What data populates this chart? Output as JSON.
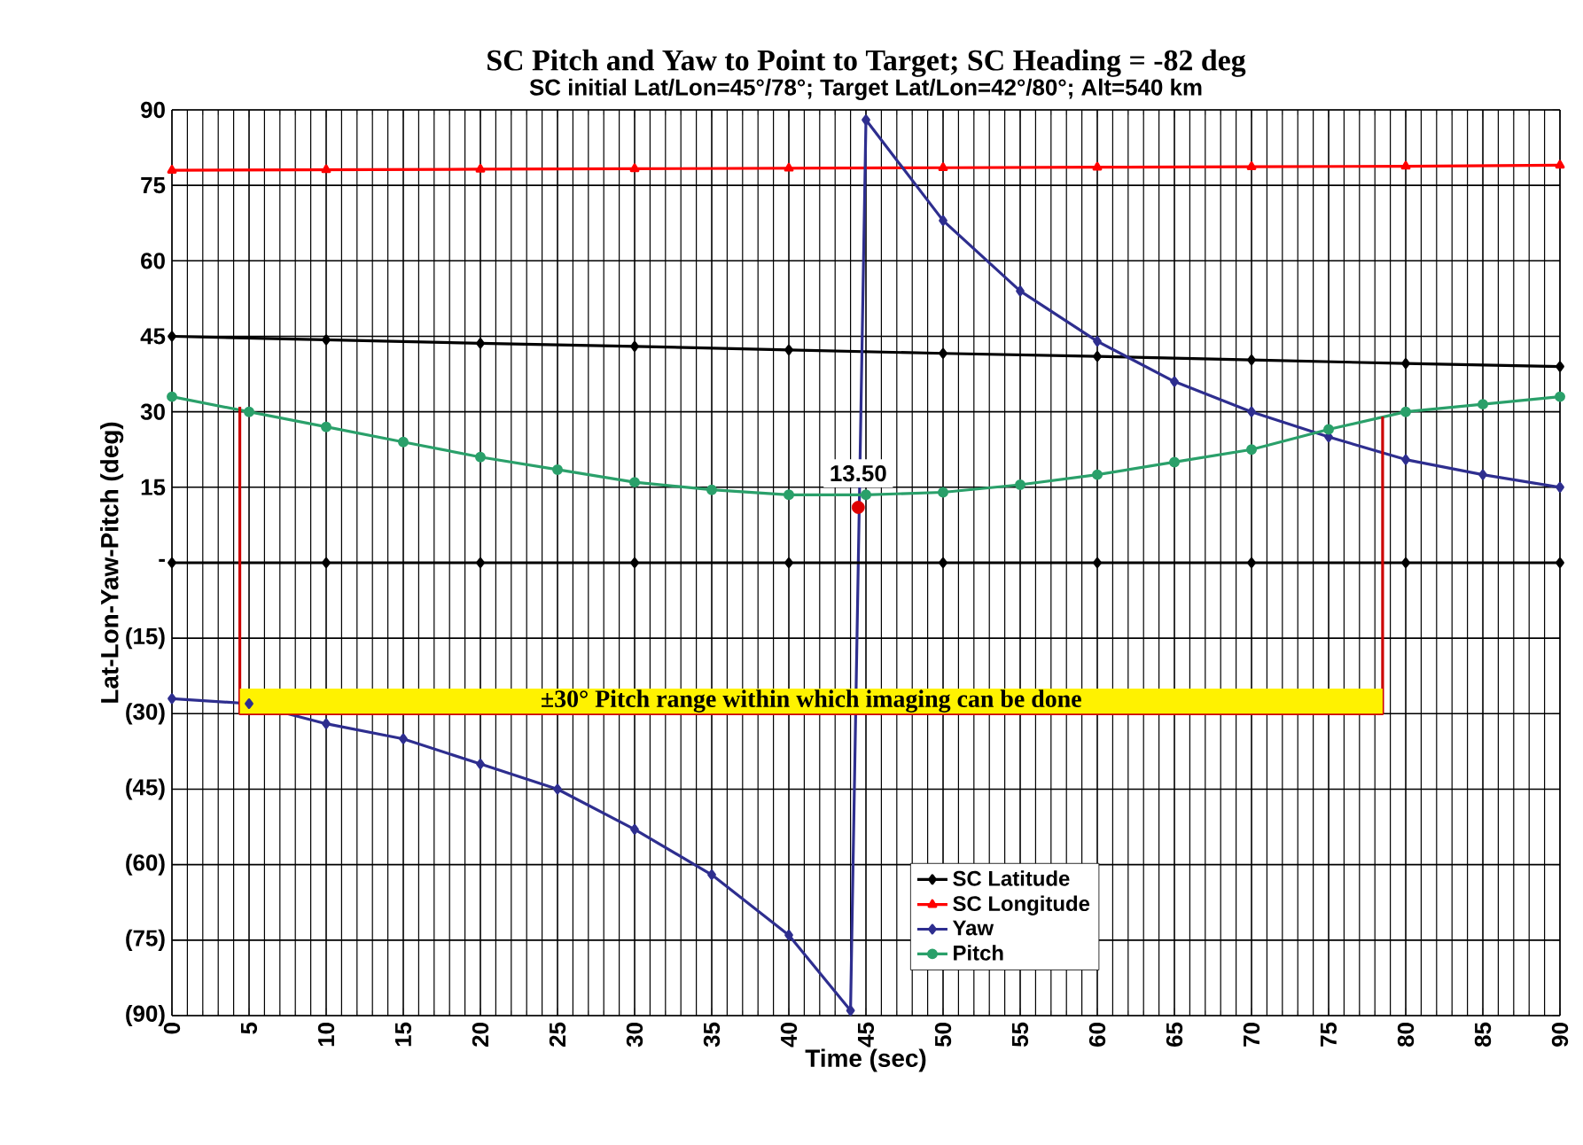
{
  "chart_data": {
    "type": "line",
    "title": "SC Pitch and Yaw to Point to Target; SC Heading = -82 deg",
    "subtitle": "SC initial Lat/Lon=45°/78°; Target Lat/Lon=42°/80°; Alt=540 km",
    "xlabel": "Time (sec)",
    "ylabel": "Lat-Lon-Yaw-Pitch (deg)",
    "xlim": [
      0,
      90
    ],
    "ylim": [
      -90,
      90
    ],
    "xticks": [
      0,
      5,
      10,
      15,
      20,
      25,
      30,
      35,
      40,
      45,
      50,
      55,
      60,
      65,
      70,
      75,
      80,
      85,
      90
    ],
    "yticks": [
      {
        "value": -90,
        "label": "(90)"
      },
      {
        "value": -75,
        "label": "(75)"
      },
      {
        "value": -60,
        "label": "(60)"
      },
      {
        "value": -45,
        "label": "(45)"
      },
      {
        "value": -30,
        "label": "(30)"
      },
      {
        "value": -15,
        "label": "(15)"
      },
      {
        "value": 0,
        "label": "-"
      },
      15,
      30,
      45,
      60,
      75,
      90
    ],
    "grid": true,
    "legend": "bottom",
    "series": [
      {
        "name": "SC Latitude",
        "color": "#000000",
        "marker": "diamond",
        "x": [
          0,
          10,
          20,
          30,
          40,
          50,
          60,
          70,
          80,
          90
        ],
        "values": [
          45,
          44.3,
          43.6,
          43,
          42.3,
          41.6,
          41,
          40.3,
          39.6,
          39
        ]
      },
      {
        "name": "SC Longitude",
        "color": "#ff0000",
        "marker": "triangle",
        "x": [
          0,
          10,
          20,
          30,
          40,
          50,
          60,
          70,
          80,
          90
        ],
        "values": [
          78,
          78.1,
          78.2,
          78.3,
          78.4,
          78.5,
          78.6,
          78.7,
          78.8,
          79
        ]
      },
      {
        "name": "Yaw",
        "color": "#2e2e8f",
        "marker": "diamond",
        "x": [
          0,
          5,
          10,
          15,
          20,
          25,
          30,
          35,
          40,
          44,
          45,
          50,
          55,
          60,
          65,
          70,
          75,
          80,
          85,
          90
        ],
        "values": [
          -27,
          -28,
          -32,
          -35,
          -40,
          -45,
          -53,
          -62,
          -74,
          -89,
          88,
          68,
          54,
          44,
          36,
          30,
          25,
          20.5,
          17.5,
          15
        ]
      },
      {
        "name": "Pitch",
        "color": "#2aa06a",
        "marker": "circle",
        "x": [
          0,
          5,
          10,
          15,
          20,
          25,
          30,
          35,
          40,
          45,
          50,
          55,
          60,
          65,
          70,
          75,
          80,
          85,
          90
        ],
        "values": [
          33,
          30,
          27,
          24,
          21,
          18.5,
          16,
          14.5,
          13.5,
          13.5,
          14,
          15.5,
          17.5,
          20,
          22.5,
          26.5,
          30,
          31.5,
          33
        ]
      },
      {
        "color": "#000000",
        "marker": "diamond",
        "x": [
          0,
          10,
          20,
          30,
          40,
          50,
          60,
          70,
          80,
          90
        ],
        "values": [
          0,
          0,
          0,
          0,
          0,
          0,
          0,
          0,
          0,
          0
        ]
      },
      {
        "color": "#cc0000",
        "marker": "none",
        "x": [
          4.4,
          4.4,
          78.5,
          78.5
        ],
        "values": [
          31,
          -30,
          -30,
          29
        ]
      },
      {
        "type": "scatter",
        "color": "#dd0000",
        "marker": "circle",
        "x": [
          44.5
        ],
        "values": [
          11
        ]
      }
    ],
    "bands": [
      {
        "axis": "y",
        "from": -30,
        "to": -25,
        "label": "±30° Pitch range within which imaging can be done",
        "color": "#fff200"
      }
    ],
    "annotations": [
      {
        "text": "13.50",
        "x": 44.5,
        "y": 13.5
      }
    ]
  }
}
